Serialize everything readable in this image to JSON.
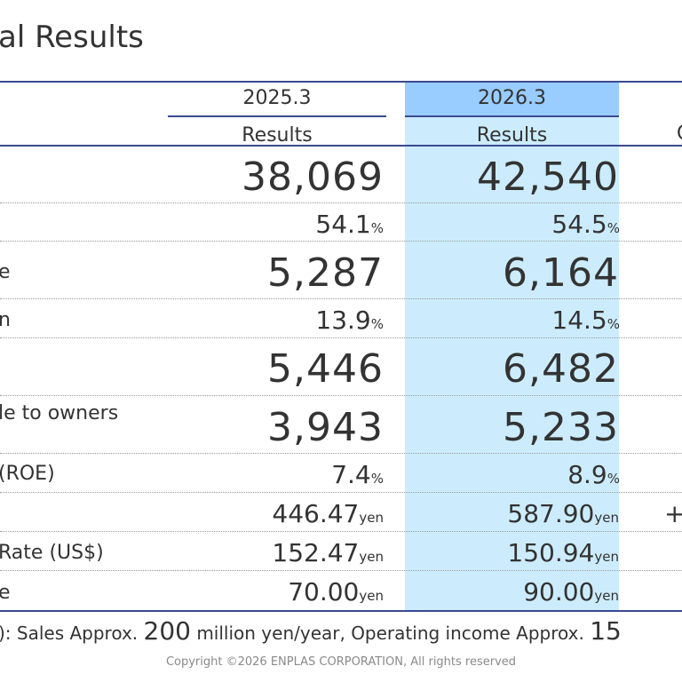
{
  "title": "al Results",
  "header": {
    "year1": "2025.3",
    "year2": "2026.3",
    "sub1": "Results",
    "sub2": "Results",
    "col3_partial": "C"
  },
  "rows": [
    {
      "label": "",
      "v1": "38,069",
      "u1": "",
      "v2": "42,540",
      "u2": "",
      "v3": ""
    },
    {
      "label": "",
      "v1": "54.1",
      "u1": "%",
      "v2": "54.5",
      "u2": "%",
      "v3": ""
    },
    {
      "label": "e",
      "v1": "5,287",
      "u1": "",
      "v2": "6,164",
      "u2": "",
      "v3": ""
    },
    {
      "label": "n",
      "v1": "13.9",
      "u1": "%",
      "v2": "14.5",
      "u2": "%",
      "v3": ""
    },
    {
      "label": "",
      "v1": "5,446",
      "u1": "",
      "v2": "6,482",
      "u2": "",
      "v3": ""
    },
    {
      "label": "le to owners",
      "v1": "3,943",
      "u1": "",
      "v2": "5,233",
      "u2": "",
      "v3": ""
    },
    {
      "label": " (ROE)",
      "v1": "7.4",
      "u1": "%",
      "v2": "8.9",
      "u2": "%",
      "v3": ""
    },
    {
      "label": "",
      "v1": "446.47",
      "u1": "yen",
      "v2": "587.90",
      "u2": "yen",
      "v3": "+"
    },
    {
      "label": "Rate (US$)",
      "v1": "152.47",
      "u1": "yen",
      "v2": "150.94",
      "u2": "yen",
      "v3": ""
    },
    {
      "label": "e",
      "v1": "70.00",
      "u1": "yen",
      "v2": "90.00",
      "u2": "yen",
      "v3": ""
    }
  ],
  "note": {
    "p1": "): Sales Approx. ",
    "n1": "200",
    "p2": " million yen/year, Operating income Approx. ",
    "n2": "15"
  },
  "copyright": "Copyright ©2026 ENPLAS CORPORATION, All rights reserved"
}
